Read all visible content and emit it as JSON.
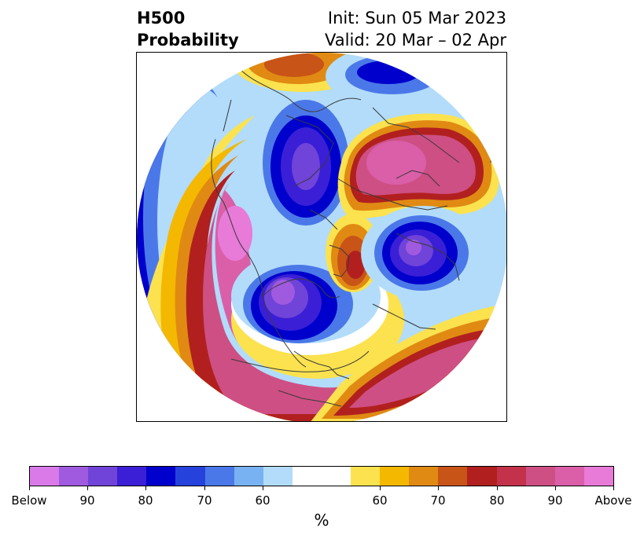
{
  "title": {
    "left_line1": "H500",
    "left_line2": "Probability",
    "right_line1": "Init: Sun 05 Mar 2023",
    "right_line2": "Valid: 20 Mar – 02 Apr"
  },
  "map": {
    "projection": "north-polar-stereographic",
    "features": [
      "height-anomaly-probability-contours",
      "country-borders",
      "state-province-borders",
      "coastlines"
    ]
  },
  "colorbar": {
    "colors": [
      "#d97ae8",
      "#a05adf",
      "#7043d9",
      "#3a1fd6",
      "#0000cc",
      "#2642dc",
      "#4b78e8",
      "#78b2f2",
      "#b2dcfa",
      "#ffffff",
      "#ffffff",
      "#fbe24e",
      "#f4b800",
      "#e08a13",
      "#c85418",
      "#b1201f",
      "#c3314a",
      "#ce4f84",
      "#da5fa8",
      "#e87ad8"
    ],
    "labels": [
      "Below",
      "90",
      "80",
      "70",
      "60",
      "60",
      "70",
      "80",
      "90",
      "Above"
    ],
    "unit": "%"
  }
}
